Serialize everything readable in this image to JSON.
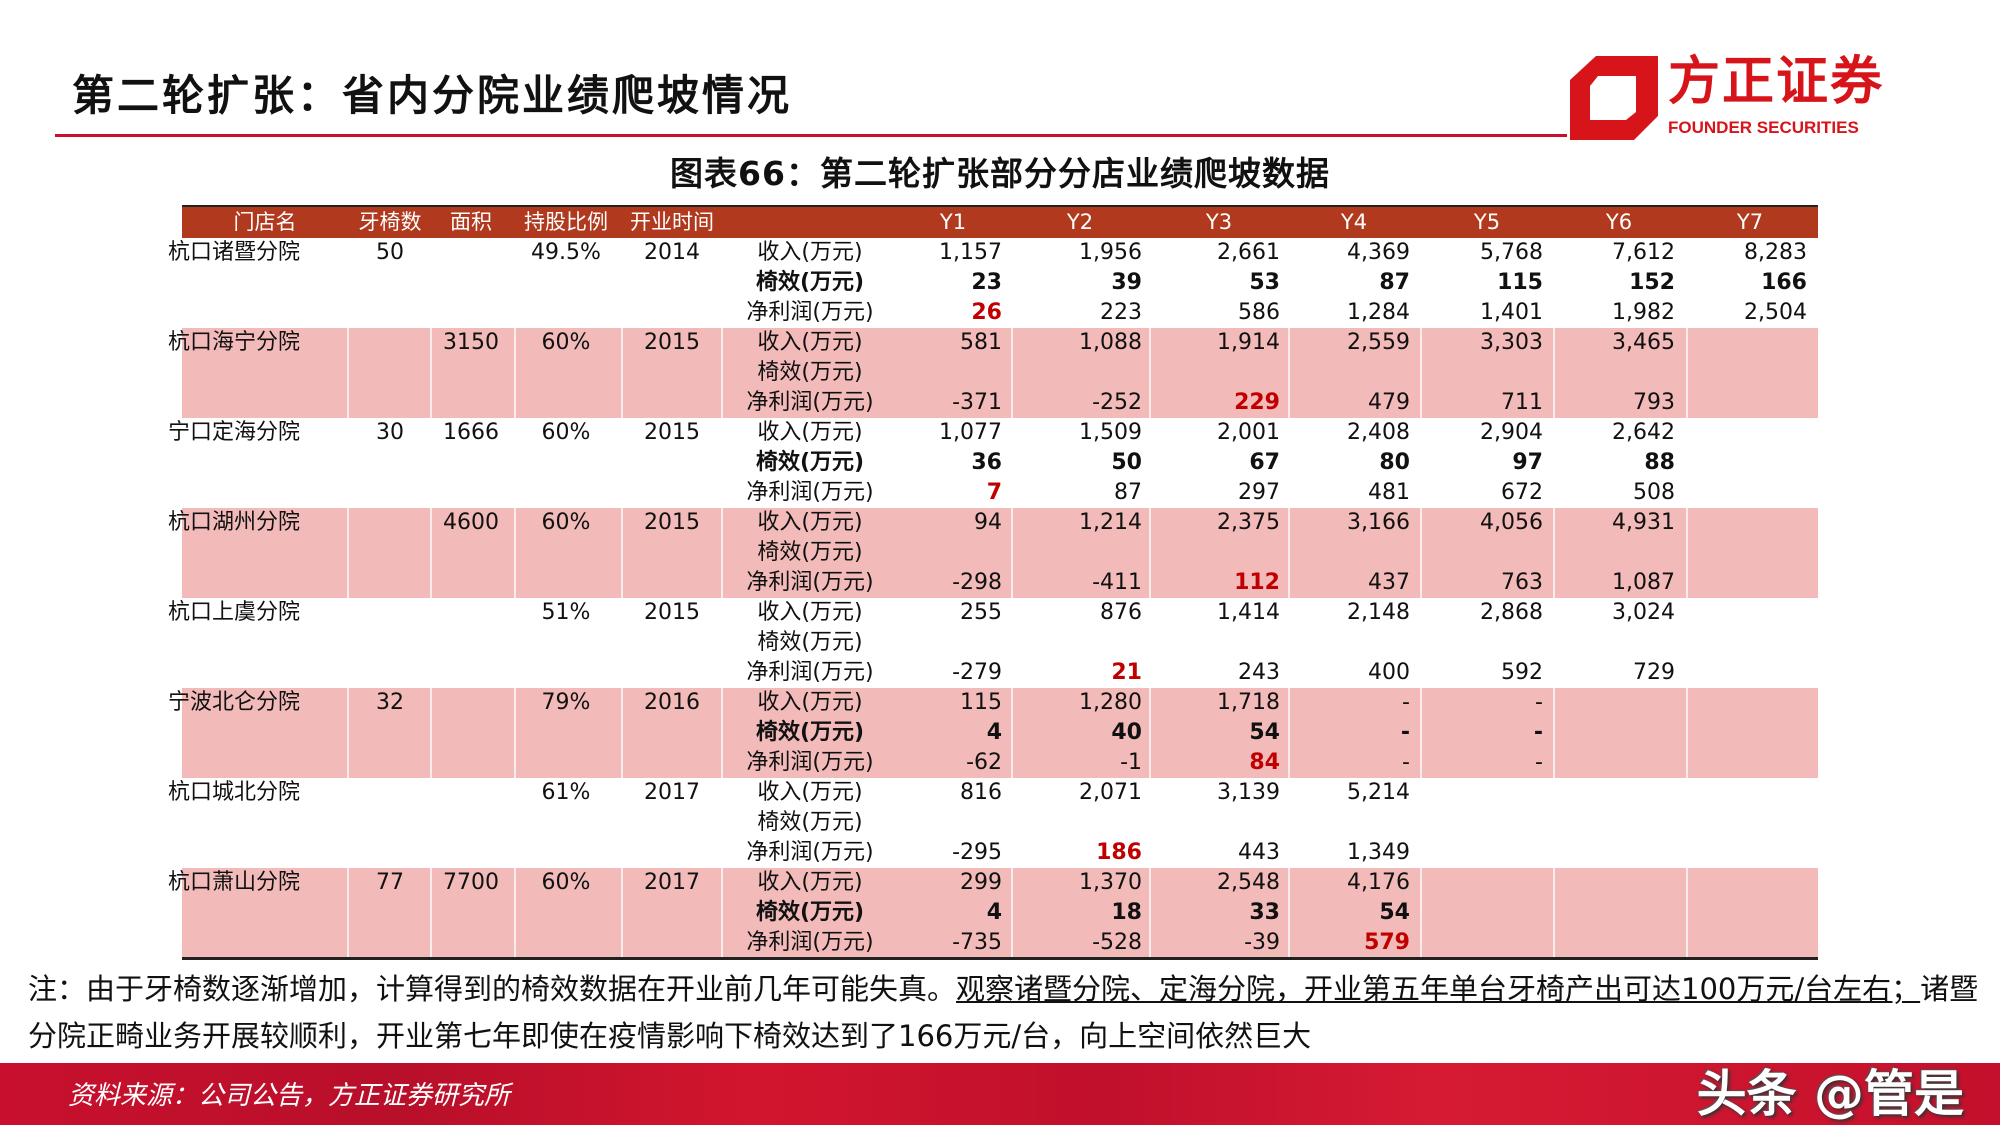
{
  "slide_title": "第二轮扩张：省内分院业绩爬坡情况",
  "logo": {
    "cn": "方正证券",
    "en": "FOUNDER SECURITIES"
  },
  "colors": {
    "brand_red": "#D7141A",
    "header_bg": "#B0391E",
    "highlight_row": "#F2BBBA",
    "emphasis_red": "#C00000"
  },
  "chart_title": "图表66：第二轮扩张部分分店业绩爬坡数据",
  "table": {
    "headers": [
      "门店名",
      "牙椅数",
      "面积",
      "持股比例",
      "开业时间",
      "",
      "Y1",
      "Y2",
      "Y3",
      "Y4",
      "Y5",
      "Y6",
      "Y7"
    ],
    "groups": [
      {
        "name": "杭口诸暨分院",
        "chairs": "50",
        "area": "",
        "share": "49.5%",
        "year": "2014",
        "highlight": false,
        "rows": [
          {
            "label": "收入(万元)",
            "bold": false,
            "values": [
              "1,157",
              "1,956",
              "2,661",
              "4,369",
              "5,768",
              "7,612",
              "8,283"
            ],
            "red": -1
          },
          {
            "label": "椅效(万元)",
            "bold": true,
            "values": [
              "23",
              "39",
              "53",
              "87",
              "115",
              "152",
              "166"
            ],
            "red": -1
          },
          {
            "label": "净利润(万元)",
            "bold": false,
            "values": [
              "26",
              "223",
              "586",
              "1,284",
              "1,401",
              "1,982",
              "2,504"
            ],
            "red": 0
          }
        ]
      },
      {
        "name": "杭口海宁分院",
        "chairs": "",
        "area": "3150",
        "share": "60%",
        "year": "2015",
        "highlight": true,
        "rows": [
          {
            "label": "收入(万元)",
            "bold": false,
            "values": [
              "581",
              "1,088",
              "1,914",
              "2,559",
              "3,303",
              "3,465",
              ""
            ],
            "red": -1
          },
          {
            "label": "椅效(万元)",
            "bold": false,
            "values": [
              "",
              "",
              "",
              "",
              "",
              "",
              ""
            ],
            "red": -1
          },
          {
            "label": "净利润(万元)",
            "bold": false,
            "values": [
              "-371",
              "-252",
              "229",
              "479",
              "711",
              "793",
              ""
            ],
            "red": 2
          }
        ]
      },
      {
        "name": "宁口定海分院",
        "chairs": "30",
        "area": "1666",
        "share": "60%",
        "year": "2015",
        "highlight": false,
        "rows": [
          {
            "label": "收入(万元)",
            "bold": false,
            "values": [
              "1,077",
              "1,509",
              "2,001",
              "2,408",
              "2,904",
              "2,642",
              ""
            ],
            "red": -1
          },
          {
            "label": "椅效(万元)",
            "bold": true,
            "values": [
              "36",
              "50",
              "67",
              "80",
              "97",
              "88",
              ""
            ],
            "red": -1
          },
          {
            "label": "净利润(万元)",
            "bold": false,
            "values": [
              "7",
              "87",
              "297",
              "481",
              "672",
              "508",
              ""
            ],
            "red": 0
          }
        ]
      },
      {
        "name": "杭口湖州分院",
        "chairs": "",
        "area": "4600",
        "share": "60%",
        "year": "2015",
        "highlight": true,
        "rows": [
          {
            "label": "收入(万元)",
            "bold": false,
            "values": [
              "94",
              "1,214",
              "2,375",
              "3,166",
              "4,056",
              "4,931",
              ""
            ],
            "red": -1
          },
          {
            "label": "椅效(万元)",
            "bold": false,
            "values": [
              "",
              "",
              "",
              "",
              "",
              "",
              ""
            ],
            "red": -1
          },
          {
            "label": "净利润(万元)",
            "bold": false,
            "values": [
              "-298",
              "-411",
              "112",
              "437",
              "763",
              "1,087",
              ""
            ],
            "red": 2
          }
        ]
      },
      {
        "name": "杭口上虞分院",
        "chairs": "",
        "area": "",
        "share": "51%",
        "year": "2015",
        "highlight": false,
        "rows": [
          {
            "label": "收入(万元)",
            "bold": false,
            "values": [
              "255",
              "876",
              "1,414",
              "2,148",
              "2,868",
              "3,024",
              ""
            ],
            "red": -1
          },
          {
            "label": "椅效(万元)",
            "bold": false,
            "values": [
              "",
              "",
              "",
              "",
              "",
              "",
              ""
            ],
            "red": -1
          },
          {
            "label": "净利润(万元)",
            "bold": false,
            "values": [
              "-279",
              "21",
              "243",
              "400",
              "592",
              "729",
              ""
            ],
            "red": 1
          }
        ]
      },
      {
        "name": "宁波北仑分院",
        "chairs": "32",
        "area": "",
        "share": "79%",
        "year": "2016",
        "highlight": true,
        "rows": [
          {
            "label": "收入(万元)",
            "bold": false,
            "values": [
              "115",
              "1,280",
              "1,718",
              "-",
              "-",
              "",
              ""
            ],
            "red": -1
          },
          {
            "label": "椅效(万元)",
            "bold": true,
            "values": [
              "4",
              "40",
              "54",
              "-",
              "-",
              "",
              ""
            ],
            "red": -1
          },
          {
            "label": "净利润(万元)",
            "bold": false,
            "values": [
              "-62",
              "-1",
              "84",
              "-",
              "-",
              "",
              ""
            ],
            "red": 2
          }
        ]
      },
      {
        "name": "杭口城北分院",
        "chairs": "",
        "area": "",
        "share": "61%",
        "year": "2017",
        "highlight": false,
        "rows": [
          {
            "label": "收入(万元)",
            "bold": false,
            "values": [
              "816",
              "2,071",
              "3,139",
              "5,214",
              "",
              "",
              ""
            ],
            "red": -1
          },
          {
            "label": "椅效(万元)",
            "bold": false,
            "values": [
              "",
              "",
              "",
              "",
              "",
              "",
              ""
            ],
            "red": -1
          },
          {
            "label": "净利润(万元)",
            "bold": false,
            "values": [
              "-295",
              "186",
              "443",
              "1,349",
              "",
              "",
              ""
            ],
            "red": 1
          }
        ]
      },
      {
        "name": "杭口萧山分院",
        "chairs": "77",
        "area": "7700",
        "share": "60%",
        "year": "2017",
        "highlight": true,
        "rows": [
          {
            "label": "收入(万元)",
            "bold": false,
            "values": [
              "299",
              "1,370",
              "2,548",
              "4,176",
              "",
              "",
              ""
            ],
            "red": -1
          },
          {
            "label": "椅效(万元)",
            "bold": true,
            "values": [
              "4",
              "18",
              "33",
              "54",
              "",
              "",
              ""
            ],
            "red": -1
          },
          {
            "label": "净利润(万元)",
            "bold": false,
            "values": [
              "-735",
              "-528",
              "-39",
              "579",
              "",
              "",
              ""
            ],
            "red": 3
          }
        ]
      }
    ]
  },
  "note": {
    "part1": "注：由于牙椅数逐渐增加，计算得到的椅效数据在开业前几年可能失真。",
    "part2_underlined": "观察诸暨分院、定海分院，开业第五年单台牙椅产出可达100万元/台左右；",
    "part3": "诸暨分院正畸业务开展较顺利，开业第七年即使在疫情影响下椅效达到了166万元/台，向上空间依然巨大"
  },
  "source": "资料来源：公司公告，方正证券研究所",
  "watermark": "头条 @管是"
}
